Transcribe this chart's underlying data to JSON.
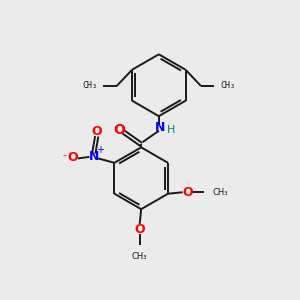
{
  "bg_color": "#ebebeb",
  "bond_color": "#1a1a1a",
  "nitrogen_color": "#0000ff",
  "oxygen_color": "#ff0000",
  "nh_color": "#008080",
  "font_size": 8,
  "linewidth": 1.4,
  "figsize": [
    3.0,
    3.0
  ],
  "dpi": 100,
  "xlim": [
    0,
    10
  ],
  "ylim": [
    0,
    10
  ]
}
